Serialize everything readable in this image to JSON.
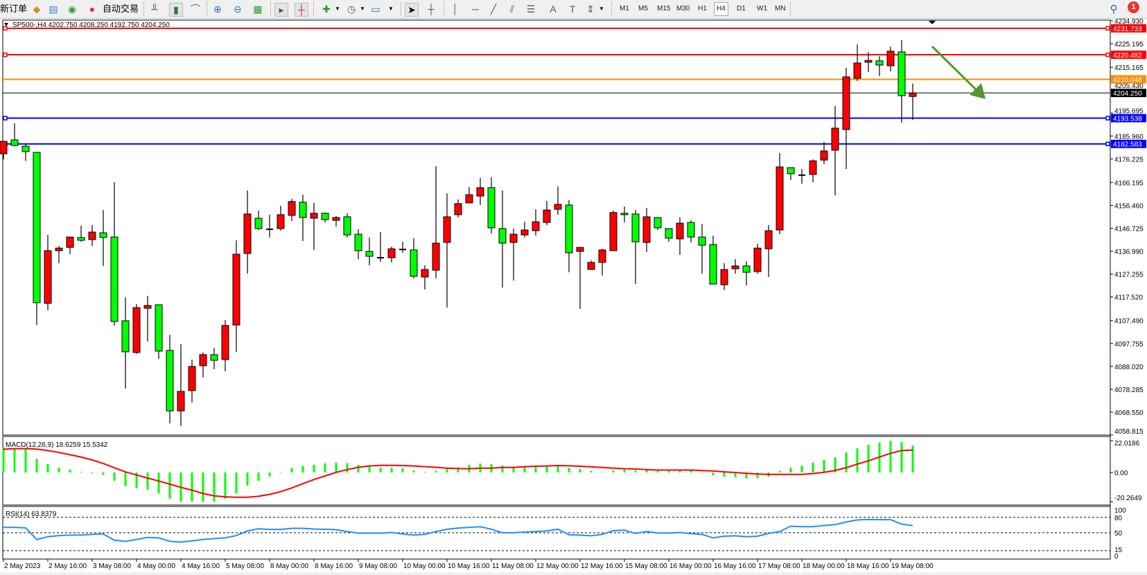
{
  "toolbar": {
    "new_order": "新订单",
    "auto_trade": "自动交易",
    "timeframes": [
      "M1",
      "M5",
      "M15",
      "M30",
      "H1",
      "H4",
      "D1",
      "W1",
      "MN"
    ],
    "active_timeframe": "H4",
    "notification_count": "1"
  },
  "chart": {
    "symbol_info": "SP500-,H4  4202.750 4208.250 4192.750 4204.250",
    "colors": {
      "bull": "#ff0000",
      "bear": "#00ff00",
      "histogram": "#00ff00",
      "signal": "#ff0000",
      "rsi": "#1e90ff",
      "arrow": "#4e9a2e"
    },
    "levels": [
      {
        "label": "4231.733",
        "value": 4231.733,
        "color": "#ff0000"
      },
      {
        "label": "4220.482",
        "value": 4220.482,
        "color": "#ff0000"
      },
      {
        "label": "4210.048",
        "value": 4210.048,
        "color": "#ff8c00"
      },
      {
        "label": "4204.250",
        "value": 4204.25,
        "color": "#000000"
      },
      {
        "label": "4193.538",
        "value": 4193.538,
        "color": "#0000ff"
      },
      {
        "label": "4182.583",
        "value": 4182.583,
        "color": "#0000ff"
      }
    ],
    "price_ticks": [
      "4234.930",
      "4225.195",
      "4215.165",
      "4205.430",
      "4195.695",
      "4185.960",
      "4176.225",
      "4166.195",
      "4156.460",
      "4146.725",
      "4136.990",
      "4127.255",
      "4117.520",
      "4107.490",
      "4097.755",
      "4088.020",
      "4078.285",
      "4068.550",
      "4058.815"
    ],
    "annotation": "down-arrow"
  },
  "chart_data": [
    {
      "type": "candlestick",
      "title": "SP500-,H4",
      "ylim": [
        4058.815,
        4234.93
      ],
      "x_tick_labels": [
        "2 May 2023",
        "2 May 16:00",
        "3 May 08:00",
        "4 May 00:00",
        "4 May 16:00",
        "5 May 08:00",
        "8 May 00:00",
        "8 May 16:00",
        "9 May 08:00",
        "10 May 00:00",
        "10 May 16:00",
        "11 May 08:00",
        "12 May 00:00",
        "12 May 16:00",
        "15 May 08:00",
        "16 May 00:00",
        "16 May 16:00",
        "17 May 08:00",
        "18 May 00:00",
        "18 May 16:00",
        "19 May 08:00"
      ],
      "ohlc": [
        [
          4178.4,
          4183.7,
          4176.0,
          4183.7
        ],
        [
          4184.3,
          4191.3,
          4181.6,
          4181.9
        ],
        [
          4181.6,
          4182.5,
          4175.4,
          4179.3
        ],
        [
          4179.0,
          4179.0,
          4105.6,
          4115.1
        ],
        [
          4114.8,
          4143.9,
          4111.8,
          4137.2
        ],
        [
          4137.2,
          4139.2,
          4131.9,
          4138.3
        ],
        [
          4138.6,
          4143.0,
          4135.7,
          4143.0
        ],
        [
          4142.8,
          4147.8,
          4141.0,
          4141.6
        ],
        [
          4141.9,
          4148.1,
          4139.2,
          4145.1
        ],
        [
          4144.8,
          4154.5,
          4130.7,
          4142.8
        ],
        [
          4143.0,
          4166.3,
          4105.4,
          4107.1
        ],
        [
          4107.4,
          4117.4,
          4078.6,
          4094.2
        ],
        [
          4093.9,
          4114.5,
          4093.3,
          4113.0
        ],
        [
          4112.7,
          4118.0,
          4098.6,
          4113.9
        ],
        [
          4114.2,
          4114.2,
          4091.2,
          4094.5
        ],
        [
          4094.8,
          4101.5,
          4063.8,
          4069.1
        ],
        [
          4069.1,
          4097.4,
          4062.7,
          4077.4
        ],
        [
          4077.7,
          4090.9,
          4072.7,
          4088.0
        ],
        [
          4088.3,
          4093.9,
          4083.3,
          4093.0
        ],
        [
          4093.0,
          4095.9,
          4086.8,
          4090.6
        ],
        [
          4090.9,
          4107.7,
          4085.9,
          4105.4
        ],
        [
          4105.6,
          4141.6,
          4094.2,
          4135.7
        ],
        [
          4136.0,
          4162.8,
          4127.4,
          4152.8
        ],
        [
          4151.0,
          4154.2,
          4146.0,
          4146.6
        ],
        [
          4146.3,
          4152.5,
          4142.8,
          4146.3
        ],
        [
          4146.6,
          4156.3,
          4145.7,
          4152.5
        ],
        [
          4152.2,
          4159.2,
          4149.8,
          4158.1
        ],
        [
          4157.8,
          4161.0,
          4141.3,
          4151.3
        ],
        [
          4151.0,
          4157.5,
          4137.5,
          4153.1
        ],
        [
          4153.1,
          4153.4,
          4149.2,
          4150.4
        ],
        [
          4150.1,
          4151.9,
          4147.5,
          4151.3
        ],
        [
          4151.6,
          4153.1,
          4142.8,
          4143.9
        ],
        [
          4144.2,
          4146.3,
          4133.6,
          4137.2
        ],
        [
          4136.9,
          4142.8,
          4131.0,
          4134.8
        ],
        [
          4134.2,
          4145.1,
          4132.4,
          4134.2
        ],
        [
          4134.2,
          4138.9,
          4132.2,
          4138.0
        ],
        [
          4137.7,
          4141.0,
          4136.3,
          4137.7
        ],
        [
          4137.5,
          4142.5,
          4125.4,
          4126.3
        ],
        [
          4126.0,
          4131.0,
          4120.7,
          4129.2
        ],
        [
          4128.9,
          4173.1,
          4125.4,
          4140.4
        ],
        [
          4140.7,
          4161.6,
          4113.0,
          4151.6
        ],
        [
          4152.5,
          4159.0,
          4151.3,
          4157.2
        ],
        [
          4157.5,
          4164.3,
          4157.5,
          4161.0
        ],
        [
          4160.4,
          4168.1,
          4156.6,
          4164.0
        ],
        [
          4164.0,
          4168.4,
          4144.5,
          4146.9
        ],
        [
          4146.6,
          4162.8,
          4121.5,
          4140.4
        ],
        [
          4140.7,
          4146.6,
          4124.5,
          4144.2
        ],
        [
          4143.9,
          4149.5,
          4142.8,
          4146.0
        ],
        [
          4145.7,
          4154.8,
          4143.6,
          4149.5
        ],
        [
          4149.2,
          4158.4,
          4148.1,
          4154.5
        ],
        [
          4154.8,
          4164.5,
          4152.5,
          4156.9
        ],
        [
          4156.6,
          4158.7,
          4128.0,
          4136.3
        ],
        [
          4136.9,
          4138.6,
          4112.4,
          4138.6
        ],
        [
          4129.2,
          4133.0,
          4129.2,
          4132.2
        ],
        [
          4132.2,
          4138.0,
          4126.6,
          4137.5
        ],
        [
          4137.2,
          4154.2,
          4137.2,
          4153.4
        ],
        [
          4153.1,
          4156.0,
          4149.2,
          4152.5
        ],
        [
          4152.8,
          4154.5,
          4123.0,
          4141.0
        ],
        [
          4140.7,
          4155.4,
          4136.6,
          4151.6
        ],
        [
          4151.3,
          4151.3,
          4146.0,
          4146.9
        ],
        [
          4146.6,
          4146.6,
          4141.0,
          4142.5
        ],
        [
          4142.2,
          4151.3,
          4135.4,
          4148.9
        ],
        [
          4149.2,
          4150.1,
          4140.7,
          4143.0
        ],
        [
          4143.0,
          4148.6,
          4127.4,
          4139.5
        ],
        [
          4139.8,
          4143.6,
          4123.0,
          4123.0
        ],
        [
          4122.7,
          4131.9,
          4120.4,
          4129.2
        ],
        [
          4129.5,
          4133.6,
          4127.4,
          4130.7
        ],
        [
          4130.7,
          4132.7,
          4122.4,
          4128.0
        ],
        [
          4128.3,
          4140.1,
          4127.4,
          4138.3
        ],
        [
          4138.0,
          4148.1,
          4126.0,
          4145.7
        ],
        [
          4146.0,
          4178.7,
          4144.2,
          4172.8
        ],
        [
          4172.5,
          4172.5,
          4167.2,
          4169.9
        ],
        [
          4169.3,
          4171.9,
          4165.7,
          4169.3
        ],
        [
          4169.6,
          4176.0,
          4166.3,
          4175.4
        ],
        [
          4175.7,
          4183.4,
          4174.0,
          4179.6
        ],
        [
          4179.9,
          4198.7,
          4160.7,
          4189.3
        ],
        [
          4188.7,
          4214.9,
          4171.9,
          4211.1
        ],
        [
          4210.5,
          4224.9,
          4209.3,
          4217.0
        ],
        [
          4217.3,
          4221.7,
          4213.1,
          4218.1
        ],
        [
          4217.9,
          4219.9,
          4211.4,
          4216.1
        ],
        [
          4215.8,
          4224.0,
          4213.4,
          4222.0
        ],
        [
          4221.7,
          4226.7,
          4191.6,
          4203.1
        ],
        [
          4202.75,
          4208.25,
          4192.75,
          4204.25
        ]
      ]
    },
    {
      "type": "bar",
      "title": "MACD(12,26,9) 18.6259 15.5342",
      "ylim": [
        -20.2649,
        22.0186
      ],
      "y_tick_labels": [
        "22.0186",
        "0.00",
        "-20.2649"
      ],
      "series": [
        {
          "name": "MACD",
          "values": [
            17.3,
            16.8,
            16.8,
            9.3,
            5.8,
            3.3,
            2.0,
            0.4,
            -0.6,
            -1.7,
            -5.8,
            -9.4,
            -11.0,
            -11.9,
            -14.6,
            -18.2,
            -20.2,
            -20.26,
            -20.26,
            -20.2,
            -18.2,
            -14.6,
            -9.1,
            -5.8,
            -2.7,
            -0.3,
            3.0,
            4.5,
            5.3,
            6.4,
            6.8,
            6.4,
            5.3,
            4.5,
            3.3,
            3.3,
            3.0,
            1.4,
            0.4,
            1.0,
            2.6,
            3.6,
            5.3,
            6.2,
            5.8,
            4.8,
            4.2,
            3.9,
            3.9,
            4.3,
            4.5,
            3.3,
            2.4,
            1.0,
            0.3,
            1.4,
            2.0,
            1.4,
            1.6,
            1.1,
            1.1,
            1.1,
            1.3,
            0.4,
            -1.9,
            -2.9,
            -3.2,
            -4.2,
            -3.9,
            -2.9,
            1.0,
            3.3,
            4.8,
            6.8,
            8.7,
            10.6,
            13.9,
            16.8,
            19.2,
            20.7,
            22.02,
            21.1,
            18.63
          ]
        },
        {
          "name": "Signal",
          "values": [
            16.1,
            16.5,
            16.5,
            16.2,
            15.2,
            13.9,
            12.3,
            10.7,
            8.7,
            6.2,
            3.3,
            0.4,
            -1.7,
            -3.9,
            -5.9,
            -8.1,
            -10.3,
            -12.3,
            -14.6,
            -16.2,
            -16.9,
            -17.2,
            -17.2,
            -16.5,
            -15.2,
            -13.3,
            -10.7,
            -7.8,
            -4.9,
            -2.4,
            0.1,
            2.0,
            3.6,
            4.5,
            4.9,
            4.9,
            4.8,
            4.5,
            4.0,
            3.6,
            3.0,
            2.7,
            2.6,
            3.0,
            3.0,
            3.5,
            3.5,
            4.0,
            4.3,
            4.5,
            4.8,
            4.6,
            4.3,
            3.9,
            3.5,
            3.0,
            2.6,
            2.4,
            2.0,
            1.7,
            1.7,
            1.7,
            1.7,
            1.3,
            1.0,
            0.4,
            0.0,
            -0.6,
            -1.1,
            -1.3,
            -1.3,
            -1.3,
            -1.3,
            -0.8,
            0.1,
            1.4,
            3.3,
            5.8,
            8.1,
            10.7,
            13.3,
            15.2,
            15.53
          ]
        }
      ]
    },
    {
      "type": "line",
      "title": "RSI(14) 63.8379",
      "ylim": [
        0,
        100
      ],
      "y_tick_labels": [
        "100",
        "80",
        "50",
        "15",
        "0"
      ],
      "levels": [
        80,
        50,
        15
      ],
      "values": [
        60.5,
        60.5,
        59.5,
        36.8,
        42.3,
        44.5,
        45.5,
        45.5,
        46.8,
        47.7,
        35.5,
        33.2,
        36.8,
        40.9,
        40.0,
        33.2,
        31.8,
        34.1,
        36.8,
        38.6,
        40.0,
        44.5,
        53.6,
        57.7,
        56.4,
        56.4,
        58.6,
        58.6,
        57.3,
        56.8,
        55.9,
        52.3,
        49.1,
        49.1,
        49.1,
        50.5,
        47.7,
        45.5,
        46.8,
        52.3,
        56.8,
        59.1,
        60.5,
        61.8,
        56.8,
        50.0,
        50.0,
        51.4,
        52.3,
        53.6,
        56.8,
        45.9,
        45.5,
        44.1,
        46.8,
        54.1,
        55.0,
        48.6,
        52.3,
        49.5,
        49.5,
        50.5,
        48.2,
        46.8,
        40.0,
        43.2,
        44.1,
        42.3,
        43.2,
        48.6,
        52.3,
        62.7,
        61.8,
        61.8,
        64.1,
        65.9,
        70.9,
        75.0,
        75.9,
        75.5,
        75.5,
        66.8,
        63.84
      ]
    }
  ]
}
